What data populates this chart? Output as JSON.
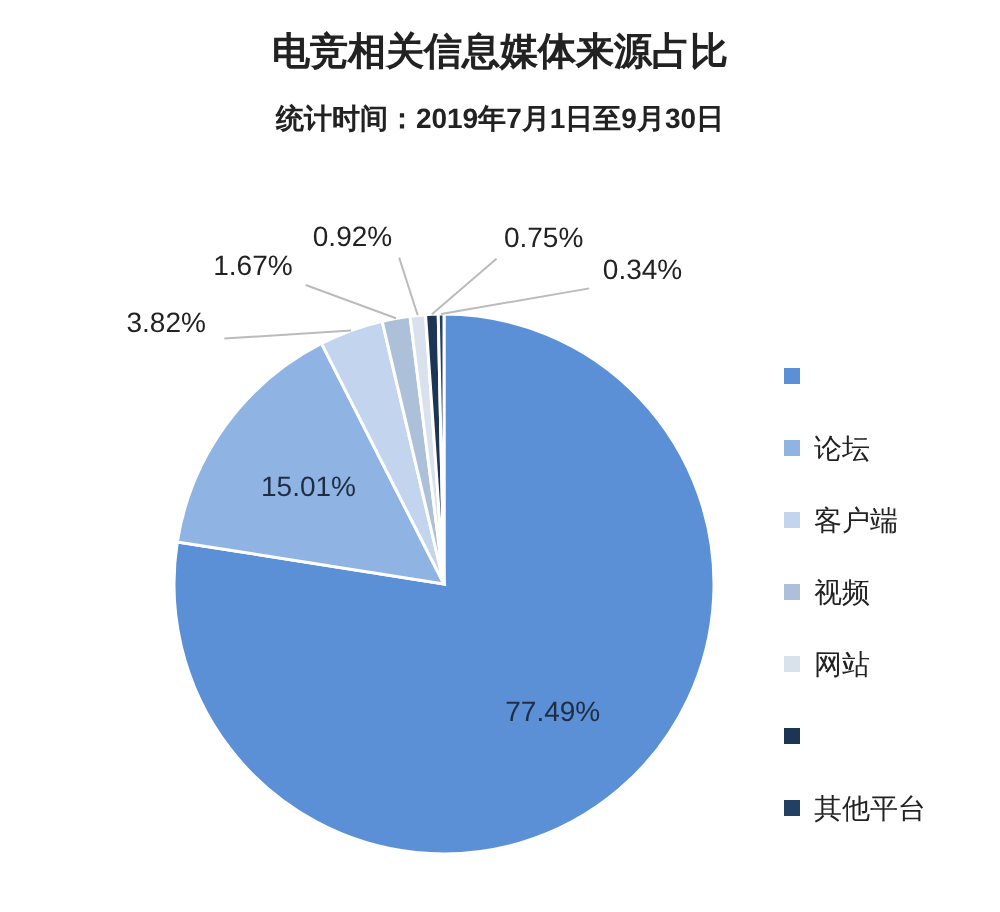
{
  "chart_data": {
    "type": "pie",
    "title": "电竞相关信息媒体来源占比",
    "subtitle": "统计时间：2019年7月1日至9月30日",
    "categories": [
      null,
      "论坛",
      "客户端",
      "视频",
      "网站",
      null,
      "其他平台"
    ],
    "values": [
      77.49,
      15.01,
      3.82,
      1.67,
      0.92,
      0.75,
      0.34
    ],
    "colors": [
      "#5b8fd6",
      "#8fb4e3",
      "#c3d5ee",
      "#adc0da",
      "#d9e1ec",
      "#1d3554",
      "#233f63"
    ],
    "value_labels": [
      "77.49%",
      "15.01%",
      "3.82%",
      "1.67%",
      "0.92%",
      "0.75%",
      "0.34%"
    ],
    "legend": "right"
  }
}
